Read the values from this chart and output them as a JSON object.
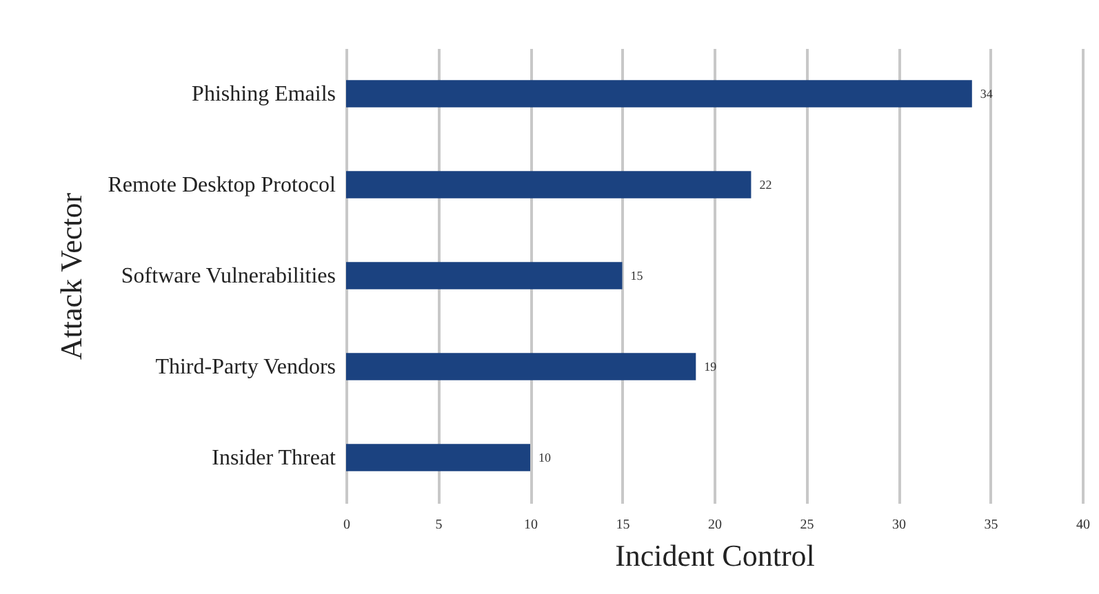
{
  "chart_data": {
    "type": "bar",
    "orientation": "horizontal",
    "xlabel": "Incident Control",
    "ylabel": "Attack Vector",
    "categories": [
      "Phishing Emails",
      "Remote Desktop Protocol",
      "Software Vulnerabilities",
      "Third-Party Vendors",
      "Insider Threat"
    ],
    "values": [
      34,
      22,
      15,
      19,
      10
    ],
    "color": "#1b4280",
    "xlim": [
      0,
      40
    ],
    "xticks": [
      0,
      5,
      10,
      15,
      20,
      25,
      30,
      35,
      40
    ],
    "grid": "x",
    "data_labels": true
  }
}
